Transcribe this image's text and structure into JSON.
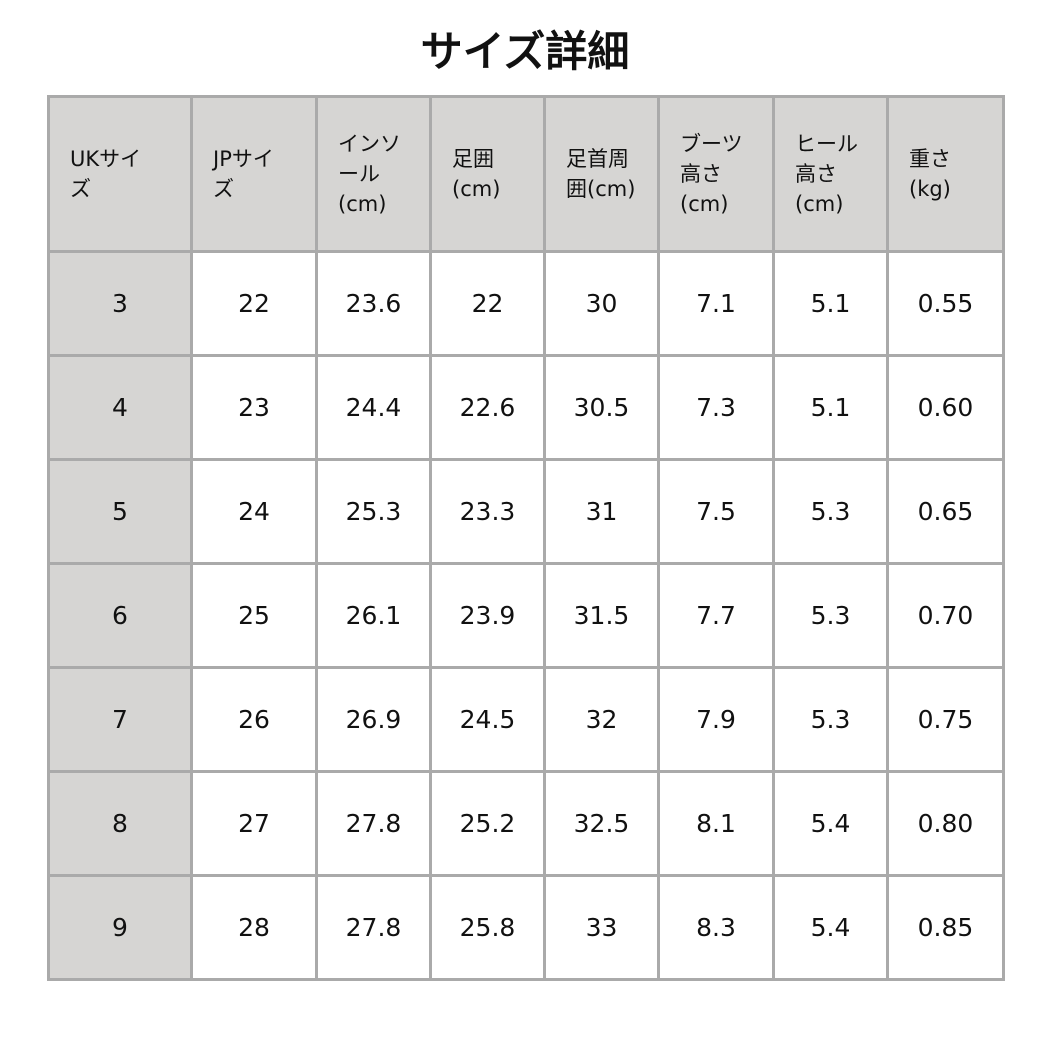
{
  "title": "サイズ詳細",
  "table": {
    "headers": [
      "UKサイ\nズ",
      "JPサイ\nズ",
      "インソ\nール\n(cm)",
      "足囲\n(cm)",
      "足首周\n囲(cm)",
      "ブーツ\n高さ\n(cm)",
      "ヒール\n高さ\n(cm)",
      "重さ\n(kg)"
    ],
    "rows": [
      [
        "3",
        "22",
        "23.6",
        "22",
        "30",
        "7.1",
        "5.1",
        "0.55"
      ],
      [
        "4",
        "23",
        "24.4",
        "22.6",
        "30.5",
        "7.3",
        "5.1",
        "0.60"
      ],
      [
        "5",
        "24",
        "25.3",
        "23.3",
        "31",
        "7.5",
        "5.3",
        "0.65"
      ],
      [
        "6",
        "25",
        "26.1",
        "23.9",
        "31.5",
        "7.7",
        "5.3",
        "0.70"
      ],
      [
        "7",
        "26",
        "26.9",
        "24.5",
        "32",
        "7.9",
        "5.3",
        "0.75"
      ],
      [
        "8",
        "27",
        "27.8",
        "25.2",
        "32.5",
        "8.1",
        "5.4",
        "0.80"
      ],
      [
        "9",
        "28",
        "27.8",
        "25.8",
        "33",
        "8.3",
        "5.4",
        "0.85"
      ]
    ]
  },
  "colors": {
    "header_bg": "#d6d5d3",
    "border": "#aaaaaa"
  }
}
